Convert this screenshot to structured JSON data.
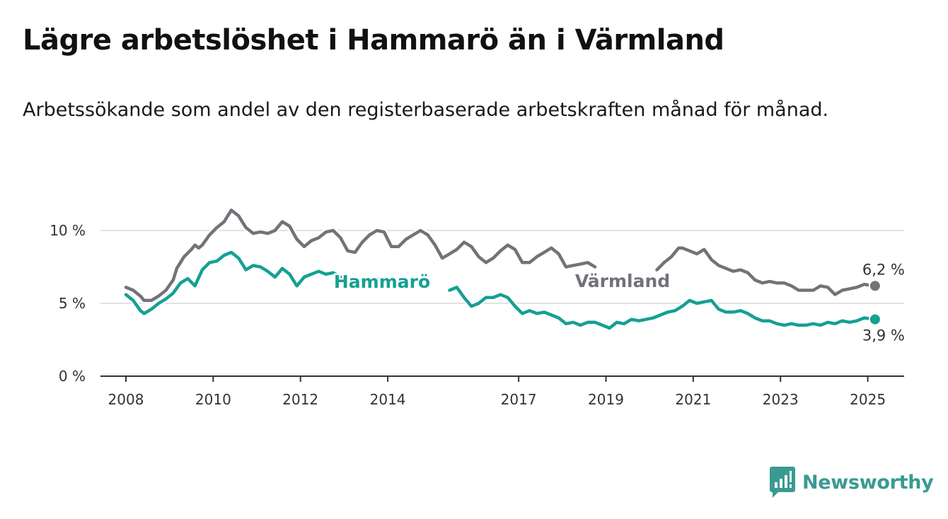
{
  "title": "Lägre arbetslöshet i Hammarö än i Värmland",
  "subtitle": "Arbetssökande som andel av den registerbaserade arbetskraften månad för månad.",
  "logo": {
    "text": "Newsworthy",
    "icon": "bar-chart-speech-icon",
    "color": "#3a9a91"
  },
  "chart_data": {
    "type": "line",
    "title": "",
    "xlabel": "",
    "ylabel": "",
    "ylim": [
      0,
      12
    ],
    "xlim": [
      "2007-06",
      "2025-11"
    ],
    "y_ticks": [
      {
        "value": 0,
        "label": "0 %"
      },
      {
        "value": 5,
        "label": "5 %"
      },
      {
        "value": 10,
        "label": "10 %"
      }
    ],
    "x_ticks": [
      {
        "date": "2008-01",
        "label": "2008"
      },
      {
        "date": "2010-01",
        "label": "2010"
      },
      {
        "date": "2012-01",
        "label": "2012"
      },
      {
        "date": "2014-01",
        "label": "2014"
      },
      {
        "date": "2017-01",
        "label": "2017"
      },
      {
        "date": "2019-01",
        "label": "2019"
      },
      {
        "date": "2021-01",
        "label": "2021"
      },
      {
        "date": "2023-01",
        "label": "2023"
      },
      {
        "date": "2025-01",
        "label": "2025"
      }
    ],
    "grid": "horizontal",
    "legend": "inline-labels",
    "series": [
      {
        "name": "Värmland",
        "color": "#737278",
        "end_label": "6,2 %",
        "points": [
          [
            "2008-01",
            6.1
          ],
          [
            "2008-03",
            5.9
          ],
          [
            "2008-05",
            5.5
          ],
          [
            "2008-06",
            5.2
          ],
          [
            "2008-08",
            5.2
          ],
          [
            "2008-10",
            5.5
          ],
          [
            "2008-12",
            5.9
          ],
          [
            "2009-02",
            6.6
          ],
          [
            "2009-03",
            7.4
          ],
          [
            "2009-05",
            8.2
          ],
          [
            "2009-07",
            8.7
          ],
          [
            "2009-08",
            9.0
          ],
          [
            "2009-09",
            8.8
          ],
          [
            "2009-10",
            9.0
          ],
          [
            "2009-12",
            9.7
          ],
          [
            "2010-02",
            10.2
          ],
          [
            "2010-04",
            10.6
          ],
          [
            "2010-06",
            11.4
          ],
          [
            "2010-08",
            11.0
          ],
          [
            "2010-10",
            10.2
          ],
          [
            "2010-12",
            9.8
          ],
          [
            "2011-02",
            9.9
          ],
          [
            "2011-04",
            9.8
          ],
          [
            "2011-06",
            10.0
          ],
          [
            "2011-08",
            10.6
          ],
          [
            "2011-10",
            10.3
          ],
          [
            "2011-12",
            9.4
          ],
          [
            "2012-02",
            8.9
          ],
          [
            "2012-04",
            9.3
          ],
          [
            "2012-06",
            9.5
          ],
          [
            "2012-08",
            9.9
          ],
          [
            "2012-10",
            10.0
          ],
          [
            "2012-12",
            9.5
          ],
          [
            "2013-02",
            8.6
          ],
          [
            "2013-04",
            8.5
          ],
          [
            "2013-06",
            9.2
          ],
          [
            "2013-08",
            9.7
          ],
          [
            "2013-10",
            10.0
          ],
          [
            "2013-12",
            9.9
          ],
          [
            "2014-02",
            8.9
          ],
          [
            "2014-04",
            8.9
          ],
          [
            "2014-06",
            9.4
          ],
          [
            "2014-08",
            9.7
          ],
          [
            "2014-10",
            10.0
          ],
          [
            "2014-12",
            9.7
          ],
          [
            "2015-02",
            9.0
          ],
          [
            "2015-04",
            8.1
          ],
          [
            "2015-06",
            8.4
          ],
          [
            "2015-08",
            8.7
          ],
          [
            "2015-10",
            9.2
          ],
          [
            "2015-12",
            8.9
          ],
          [
            "2016-02",
            8.2
          ],
          [
            "2016-04",
            7.8
          ],
          [
            "2016-06",
            8.1
          ],
          [
            "2016-08",
            8.6
          ],
          [
            "2016-10",
            9.0
          ],
          [
            "2016-12",
            8.7
          ],
          [
            "2017-02",
            7.8
          ],
          [
            "2017-04",
            7.8
          ],
          [
            "2017-06",
            8.2
          ],
          [
            "2017-08",
            8.5
          ],
          [
            "2017-10",
            8.8
          ],
          [
            "2017-12",
            8.4
          ],
          [
            "2018-02",
            7.5
          ],
          [
            "2018-04",
            7.6
          ],
          [
            "2018-06",
            7.7
          ],
          [
            "2018-08",
            7.8
          ],
          [
            "2018-10",
            7.5
          ],
          [
            "2018-12",
            7.3
          ],
          [
            "2019-06",
            7.0
          ],
          [
            "2019-12",
            6.9
          ],
          [
            "2020-03",
            7.3
          ],
          [
            "2020-05",
            7.8
          ],
          [
            "2020-07",
            8.2
          ],
          [
            "2020-09",
            8.8
          ],
          [
            "2020-10",
            8.8
          ],
          [
            "2020-12",
            8.6
          ],
          [
            "2021-02",
            8.4
          ],
          [
            "2021-04",
            8.7
          ],
          [
            "2021-06",
            8.0
          ],
          [
            "2021-08",
            7.6
          ],
          [
            "2021-10",
            7.4
          ],
          [
            "2021-12",
            7.2
          ],
          [
            "2022-02",
            7.3
          ],
          [
            "2022-04",
            7.1
          ],
          [
            "2022-06",
            6.6
          ],
          [
            "2022-08",
            6.4
          ],
          [
            "2022-10",
            6.5
          ],
          [
            "2022-12",
            6.4
          ],
          [
            "2023-02",
            6.4
          ],
          [
            "2023-04",
            6.2
          ],
          [
            "2023-06",
            5.9
          ],
          [
            "2023-08",
            5.9
          ],
          [
            "2023-10",
            5.9
          ],
          [
            "2023-12",
            6.2
          ],
          [
            "2024-02",
            6.1
          ],
          [
            "2024-04",
            5.6
          ],
          [
            "2024-06",
            5.9
          ],
          [
            "2024-08",
            6.0
          ],
          [
            "2024-10",
            6.1
          ],
          [
            "2024-12",
            6.3
          ],
          [
            "2025-03",
            6.2
          ]
        ],
        "gaps": [
          [
            "2018-10",
            "2020-03"
          ]
        ]
      },
      {
        "name": "Hammarö",
        "color": "#14a093",
        "end_label": "3,9 %",
        "points": [
          [
            "2008-01",
            5.6
          ],
          [
            "2008-03",
            5.2
          ],
          [
            "2008-05",
            4.5
          ],
          [
            "2008-06",
            4.3
          ],
          [
            "2008-08",
            4.6
          ],
          [
            "2008-10",
            5.0
          ],
          [
            "2008-12",
            5.3
          ],
          [
            "2009-02",
            5.7
          ],
          [
            "2009-04",
            6.4
          ],
          [
            "2009-06",
            6.7
          ],
          [
            "2009-08",
            6.2
          ],
          [
            "2009-10",
            7.3
          ],
          [
            "2009-12",
            7.8
          ],
          [
            "2010-02",
            7.9
          ],
          [
            "2010-04",
            8.3
          ],
          [
            "2010-06",
            8.5
          ],
          [
            "2010-08",
            8.1
          ],
          [
            "2010-10",
            7.3
          ],
          [
            "2010-12",
            7.6
          ],
          [
            "2011-02",
            7.5
          ],
          [
            "2011-04",
            7.2
          ],
          [
            "2011-06",
            6.8
          ],
          [
            "2011-08",
            7.4
          ],
          [
            "2011-10",
            7.0
          ],
          [
            "2011-12",
            6.2
          ],
          [
            "2012-02",
            6.8
          ],
          [
            "2012-04",
            7.0
          ],
          [
            "2012-06",
            7.2
          ],
          [
            "2012-08",
            7.0
          ],
          [
            "2012-10",
            7.1
          ],
          [
            "2012-12",
            6.8
          ],
          [
            "2013-02",
            6.5
          ],
          [
            "2013-04",
            6.9
          ],
          [
            "2013-06",
            7.3
          ],
          [
            "2013-08",
            6.9
          ],
          [
            "2013-10",
            6.7
          ],
          [
            "2013-12",
            6.4
          ],
          [
            "2014-02",
            6.2
          ],
          [
            "2014-04",
            5.9
          ],
          [
            "2014-06",
            6.0
          ],
          [
            "2014-08",
            5.6
          ],
          [
            "2014-10",
            5.4
          ],
          [
            "2014-12",
            5.5
          ],
          [
            "2015-02",
            5.3
          ],
          [
            "2015-04",
            5.5
          ],
          [
            "2015-06",
            5.9
          ],
          [
            "2015-08",
            6.1
          ],
          [
            "2015-10",
            5.4
          ],
          [
            "2015-12",
            4.8
          ],
          [
            "2016-02",
            5.0
          ],
          [
            "2016-04",
            5.4
          ],
          [
            "2016-06",
            5.4
          ],
          [
            "2016-08",
            5.6
          ],
          [
            "2016-10",
            5.4
          ],
          [
            "2016-12",
            4.8
          ],
          [
            "2017-02",
            4.3
          ],
          [
            "2017-04",
            4.5
          ],
          [
            "2017-06",
            4.3
          ],
          [
            "2017-08",
            4.4
          ],
          [
            "2017-10",
            4.2
          ],
          [
            "2017-12",
            4.0
          ],
          [
            "2018-02",
            3.6
          ],
          [
            "2018-04",
            3.7
          ],
          [
            "2018-06",
            3.5
          ],
          [
            "2018-08",
            3.7
          ],
          [
            "2018-10",
            3.7
          ],
          [
            "2018-12",
            3.5
          ],
          [
            "2019-02",
            3.3
          ],
          [
            "2019-04",
            3.7
          ],
          [
            "2019-06",
            3.6
          ],
          [
            "2019-08",
            3.9
          ],
          [
            "2019-10",
            3.8
          ],
          [
            "2019-12",
            3.9
          ],
          [
            "2020-02",
            4.0
          ],
          [
            "2020-04",
            4.2
          ],
          [
            "2020-06",
            4.4
          ],
          [
            "2020-08",
            4.5
          ],
          [
            "2020-10",
            4.8
          ],
          [
            "2020-12",
            5.2
          ],
          [
            "2021-02",
            5.0
          ],
          [
            "2021-04",
            5.1
          ],
          [
            "2021-06",
            5.2
          ],
          [
            "2021-08",
            4.6
          ],
          [
            "2021-10",
            4.4
          ],
          [
            "2021-12",
            4.4
          ],
          [
            "2022-02",
            4.5
          ],
          [
            "2022-04",
            4.3
          ],
          [
            "2022-06",
            4.0
          ],
          [
            "2022-08",
            3.8
          ],
          [
            "2022-10",
            3.8
          ],
          [
            "2022-12",
            3.6
          ],
          [
            "2023-02",
            3.5
          ],
          [
            "2023-04",
            3.6
          ],
          [
            "2023-06",
            3.5
          ],
          [
            "2023-08",
            3.5
          ],
          [
            "2023-10",
            3.6
          ],
          [
            "2023-12",
            3.5
          ],
          [
            "2024-02",
            3.7
          ],
          [
            "2024-04",
            3.6
          ],
          [
            "2024-06",
            3.8
          ],
          [
            "2024-08",
            3.7
          ],
          [
            "2024-10",
            3.8
          ],
          [
            "2024-12",
            4.0
          ],
          [
            "2025-03",
            3.9
          ]
        ],
        "gaps": [
          [
            "2012-12",
            "2013-10"
          ],
          [
            "2014-02",
            "2015-06"
          ]
        ]
      }
    ]
  }
}
